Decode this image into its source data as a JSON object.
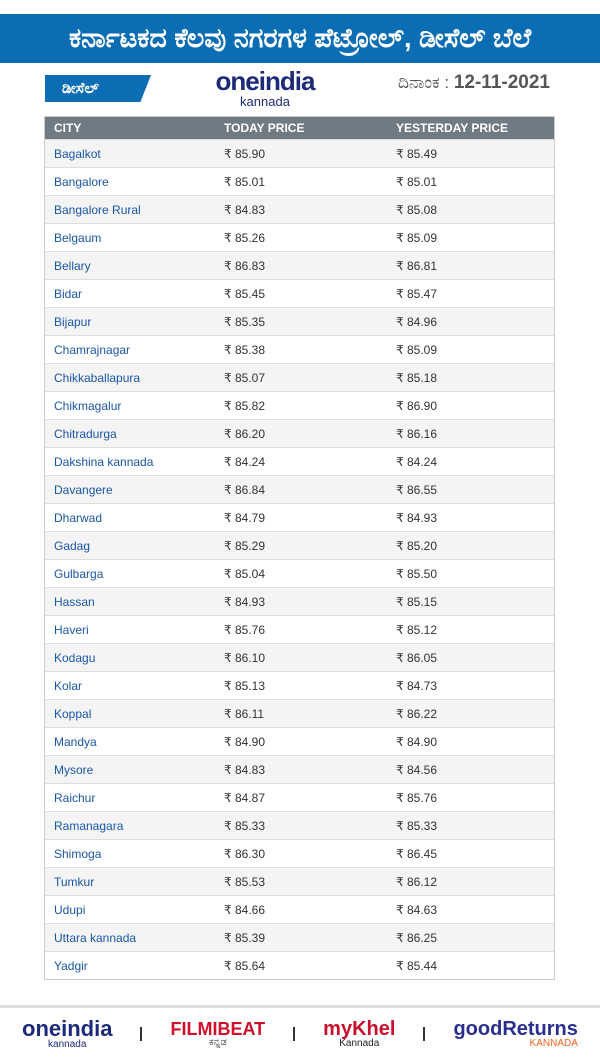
{
  "header": {
    "title": "ಕರ್ನಾಟಕದ ಕೆಲವು ನಗರಗಳ ಪೆಟ್ರೋಲ್, ಡೀಸೆಲ್ ಬೆಲೆ",
    "fuel_badge": "ಡೀಸೆಲ್",
    "date_label": "ದಿನಾಂಕ :",
    "date": "12-11-2021"
  },
  "colors": {
    "brand": "#0b6db3",
    "table_header": "#707a82",
    "city_text": "#1a56a8"
  },
  "table": {
    "columns": [
      "CITY",
      "TODAY PRICE",
      "YESTERDAY PRICE"
    ],
    "rows": [
      [
        "Bagalkot",
        "₹ 85.90",
        "₹ 85.49"
      ],
      [
        "Bangalore",
        "₹ 85.01",
        "₹ 85.01"
      ],
      [
        "Bangalore Rural",
        "₹ 84.83",
        "₹ 85.08"
      ],
      [
        "Belgaum",
        "₹ 85.26",
        "₹ 85.09"
      ],
      [
        "Bellary",
        "₹ 86.83",
        "₹ 86.81"
      ],
      [
        "Bidar",
        "₹ 85.45",
        "₹ 85.47"
      ],
      [
        "Bijapur",
        "₹ 85.35",
        "₹ 84.96"
      ],
      [
        "Chamrajnagar",
        "₹ 85.38",
        "₹ 85.09"
      ],
      [
        "Chikkaballapura",
        "₹ 85.07",
        "₹ 85.18"
      ],
      [
        "Chikmagalur",
        "₹ 85.82",
        "₹ 86.90"
      ],
      [
        "Chitradurga",
        "₹ 86.20",
        "₹ 86.16"
      ],
      [
        "Dakshina kannada",
        "₹ 84.24",
        "₹ 84.24"
      ],
      [
        "Davangere",
        "₹ 86.84",
        "₹ 86.55"
      ],
      [
        "Dharwad",
        "₹ 84.79",
        "₹ 84.93"
      ],
      [
        "Gadag",
        "₹ 85.29",
        "₹ 85.20"
      ],
      [
        "Gulbarga",
        "₹ 85.04",
        "₹ 85.50"
      ],
      [
        "Hassan",
        "₹ 84.93",
        "₹ 85.15"
      ],
      [
        "Haveri",
        "₹ 85.76",
        "₹ 85.12"
      ],
      [
        "Kodagu",
        "₹ 86.10",
        "₹ 86.05"
      ],
      [
        "Kolar",
        "₹ 85.13",
        "₹ 84.73"
      ],
      [
        "Koppal",
        "₹ 86.11",
        "₹ 86.22"
      ],
      [
        "Mandya",
        "₹ 84.90",
        "₹ 84.90"
      ],
      [
        "Mysore",
        "₹ 84.83",
        "₹ 84.56"
      ],
      [
        "Raichur",
        "₹ 84.87",
        "₹ 85.76"
      ],
      [
        "Ramanagara",
        "₹ 85.33",
        "₹ 85.33"
      ],
      [
        "Shimoga",
        "₹ 86.30",
        "₹ 86.45"
      ],
      [
        "Tumkur",
        "₹ 85.53",
        "₹ 86.12"
      ],
      [
        "Udupi",
        "₹ 84.66",
        "₹ 84.63"
      ],
      [
        "Uttara kannada",
        "₹ 85.39",
        "₹ 86.25"
      ],
      [
        "Yadgir",
        "₹ 85.64",
        "₹ 85.44"
      ]
    ]
  },
  "watermark": {
    "brand": "oneindia",
    "sub": "kannada"
  },
  "footer": {
    "logos": [
      {
        "name": "oneindia",
        "sub": "kannada"
      },
      {
        "name": "FILMIBEAT",
        "sub": "ಕನ್ನಡ"
      },
      {
        "name": "myKhel",
        "sub": "Kannada"
      },
      {
        "name": "goodReturns",
        "sub": "KANNADA"
      }
    ]
  }
}
